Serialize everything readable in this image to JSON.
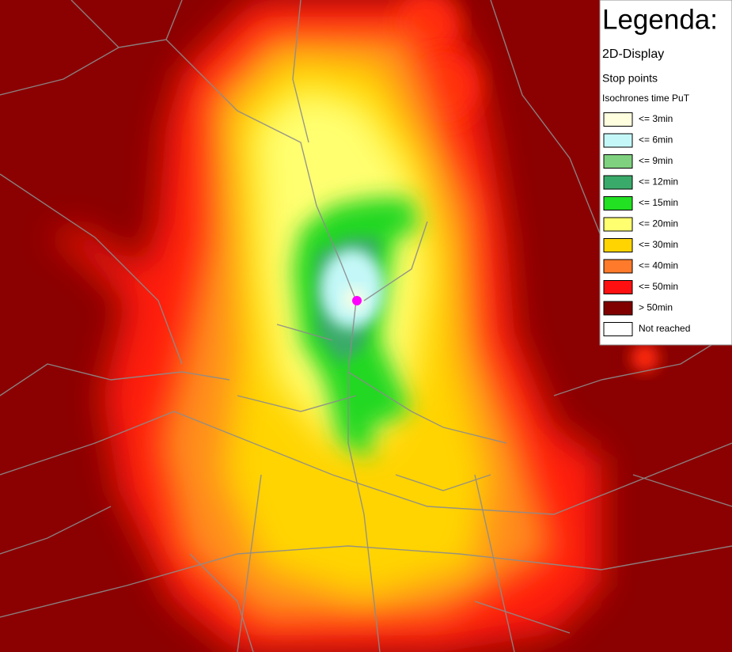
{
  "legend": {
    "title": "Legenda:",
    "display": "2D-Display",
    "stop_points": "Stop points",
    "subtitle": "Isochrones time PuT",
    "items": [
      {
        "label": "<= 3min",
        "color": "#ffffe0"
      },
      {
        "label": "<= 6min",
        "color": "#c4f8f8"
      },
      {
        "label": "<= 9min",
        "color": "#7fd17f"
      },
      {
        "label": "<= 12min",
        "color": "#3aaa6a"
      },
      {
        "label": "<= 15min",
        "color": "#22e022"
      },
      {
        "label": "<= 20min",
        "color": "#ffff70"
      },
      {
        "label": "<= 30min",
        "color": "#ffd400"
      },
      {
        "label": "<= 40min",
        "color": "#ff7a2a"
      },
      {
        "label": "<= 50min",
        "color": "#ff1010"
      },
      {
        "label": "> 50min",
        "color": "#800000"
      },
      {
        "label": "Not reached",
        "color": "#ffffff"
      }
    ]
  }
}
